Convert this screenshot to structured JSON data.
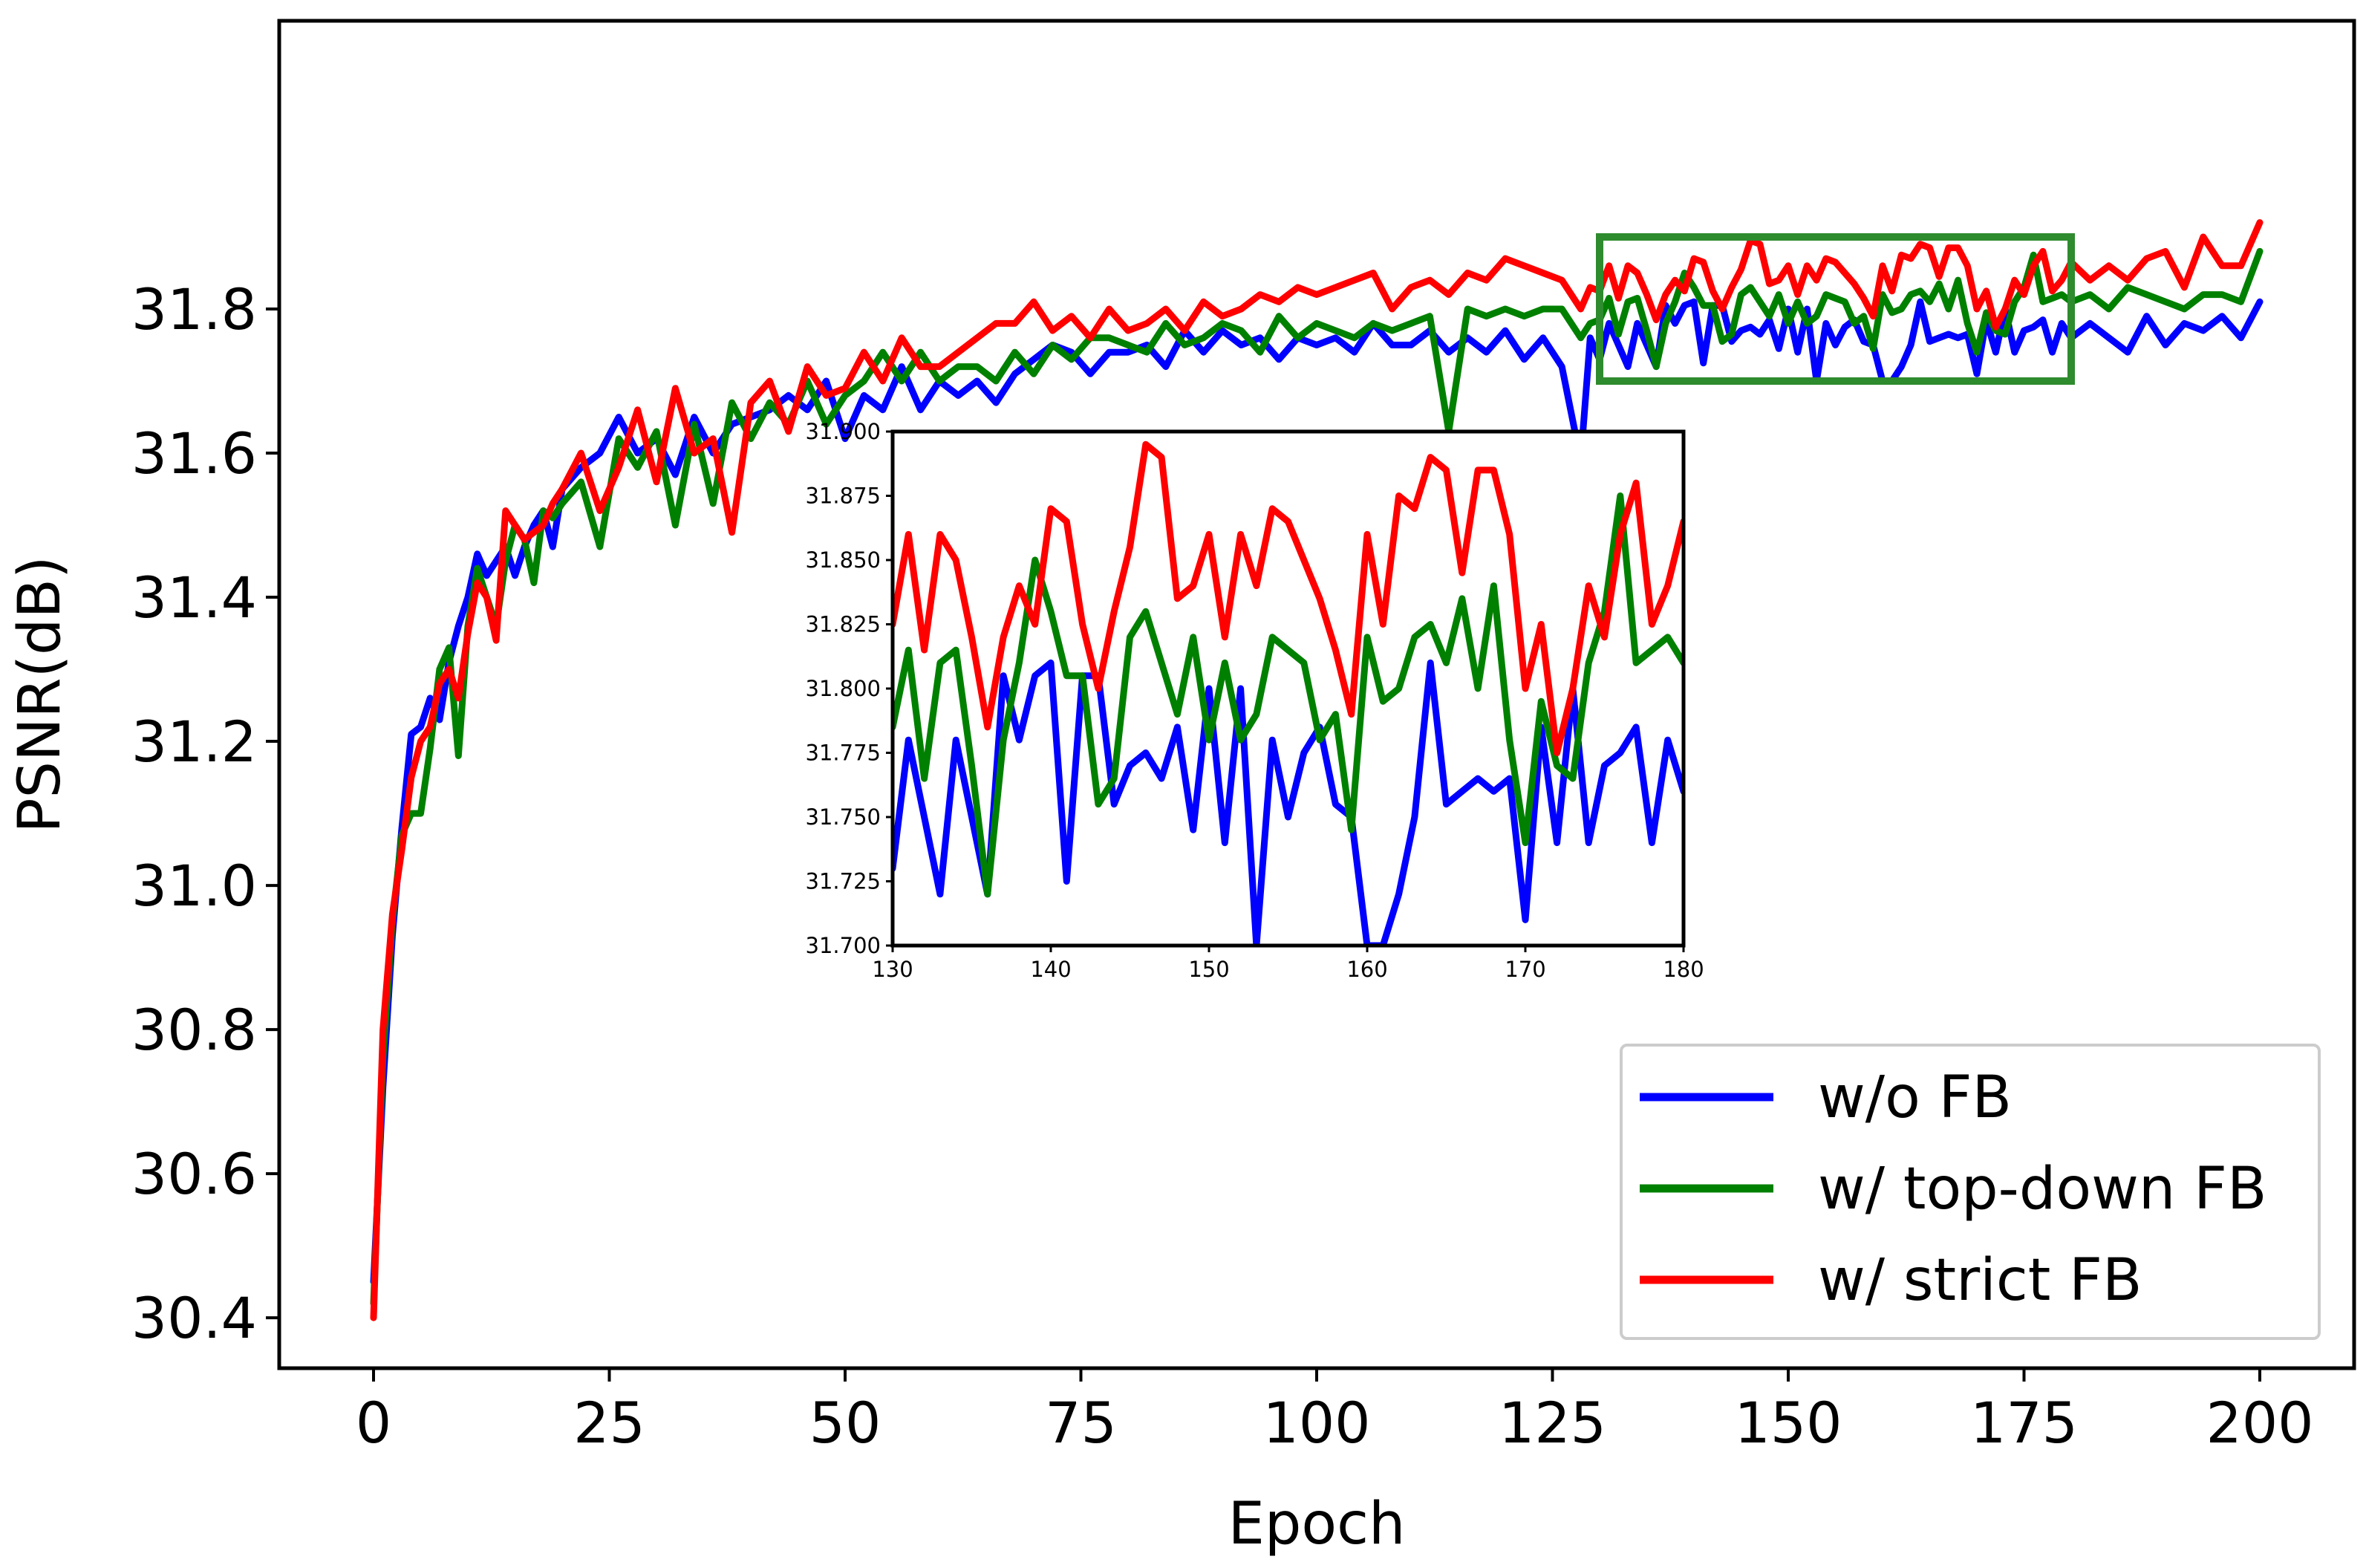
{
  "chart_data": {
    "type": "line",
    "title": "",
    "xlabel": "Epoch",
    "ylabel": "PSNR(dB)",
    "xlim": [
      -10,
      210
    ],
    "ylim": [
      30.33,
      32.2
    ],
    "xticks": [
      0,
      25,
      50,
      75,
      100,
      125,
      150,
      175,
      200
    ],
    "xtick_labels": [
      "0",
      "25",
      "50",
      "75",
      "100",
      "125",
      "150",
      "175",
      "200"
    ],
    "yticks": [
      30.4,
      30.6,
      30.8,
      31.0,
      31.2,
      31.4,
      31.6,
      31.8
    ],
    "ytick_labels": [
      "30.4",
      "30.6",
      "30.8",
      "31.0",
      "31.2",
      "31.4",
      "31.6",
      "31.8"
    ],
    "grid": false,
    "legend_position": "bottom-right",
    "series": [
      {
        "name": "w/o FB",
        "color": "#0000ff",
        "x": [
          0,
          1,
          2,
          3,
          4,
          5,
          6,
          7,
          8,
          9,
          10,
          11,
          12,
          13,
          14,
          15,
          16,
          17,
          18,
          19,
          20,
          22,
          24,
          26,
          28,
          30,
          32,
          34,
          36,
          38,
          40,
          42,
          44,
          46,
          48,
          50,
          52,
          54,
          56,
          58,
          60,
          62,
          64,
          66,
          68,
          70,
          72,
          74,
          76,
          78,
          80,
          82,
          84,
          86,
          88,
          90,
          92,
          94,
          96,
          98,
          100,
          102,
          104,
          106,
          108,
          110,
          112,
          114,
          116,
          118,
          120,
          122,
          124,
          126,
          128,
          129,
          130,
          131,
          132,
          133,
          134,
          135,
          136,
          137,
          138,
          139,
          140,
          141,
          142,
          143,
          144,
          145,
          146,
          147,
          148,
          149,
          150,
          151,
          152,
          153,
          154,
          155,
          156,
          157,
          158,
          159,
          160,
          161,
          162,
          163,
          164,
          165,
          166,
          167,
          168,
          169,
          170,
          171,
          172,
          173,
          174,
          175,
          176,
          177,
          178,
          179,
          180,
          182,
          184,
          186,
          188,
          190,
          192,
          194,
          196,
          198,
          200
        ],
        "values": [
          30.45,
          30.72,
          30.93,
          31.08,
          31.21,
          31.22,
          31.26,
          31.23,
          31.31,
          31.36,
          31.4,
          31.46,
          31.43,
          31.45,
          31.47,
          31.43,
          31.47,
          31.5,
          31.52,
          31.47,
          31.55,
          31.58,
          31.6,
          31.65,
          31.6,
          31.62,
          31.57,
          31.65,
          31.6,
          31.64,
          31.65,
          31.66,
          31.68,
          31.66,
          31.7,
          31.62,
          31.68,
          31.66,
          31.72,
          31.66,
          31.7,
          31.68,
          31.7,
          31.67,
          31.71,
          31.73,
          31.75,
          31.74,
          31.71,
          31.74,
          31.74,
          31.75,
          31.72,
          31.77,
          31.74,
          31.77,
          31.75,
          31.76,
          31.73,
          31.76,
          31.75,
          31.76,
          31.74,
          31.78,
          31.75,
          31.75,
          31.77,
          31.74,
          31.76,
          31.74,
          31.77,
          31.73,
          31.76,
          31.72,
          31.59,
          31.76,
          31.73,
          31.78,
          31.75,
          31.72,
          31.78,
          31.75,
          31.72,
          31.805,
          31.78,
          31.805,
          31.81,
          31.725,
          31.805,
          31.805,
          31.755,
          31.77,
          31.775,
          31.765,
          31.785,
          31.745,
          31.8,
          31.74,
          31.8,
          31.7,
          31.78,
          31.75,
          31.775,
          31.785,
          31.755,
          31.75,
          31.7,
          31.7,
          31.72,
          31.75,
          31.81,
          31.755,
          31.76,
          31.765,
          31.76,
          31.765,
          31.71,
          31.785,
          31.74,
          31.8,
          31.74,
          31.77,
          31.775,
          31.785,
          31.74,
          31.78,
          31.76,
          31.78,
          31.76,
          31.74,
          31.79,
          31.75,
          31.78,
          31.77,
          31.79,
          31.76,
          31.81
        ]
      },
      {
        "name": "w/ top-down FB",
        "color": "#008000",
        "x": [
          0,
          1,
          2,
          3,
          4,
          5,
          6,
          7,
          8,
          9,
          10,
          11,
          12,
          13,
          14,
          15,
          16,
          17,
          18,
          19,
          20,
          22,
          24,
          26,
          28,
          30,
          32,
          34,
          36,
          38,
          40,
          42,
          44,
          46,
          48,
          50,
          52,
          54,
          56,
          58,
          60,
          62,
          64,
          66,
          68,
          70,
          72,
          74,
          76,
          78,
          80,
          82,
          84,
          86,
          88,
          90,
          92,
          94,
          96,
          98,
          100,
          102,
          104,
          106,
          108,
          110,
          112,
          114,
          116,
          118,
          120,
          122,
          124,
          126,
          128,
          129,
          130,
          131,
          132,
          133,
          134,
          135,
          136,
          137,
          138,
          139,
          140,
          141,
          142,
          143,
          144,
          145,
          146,
          147,
          148,
          149,
          150,
          151,
          152,
          153,
          154,
          155,
          156,
          157,
          158,
          159,
          160,
          161,
          162,
          163,
          164,
          165,
          166,
          167,
          168,
          169,
          170,
          171,
          172,
          173,
          174,
          175,
          176,
          177,
          178,
          179,
          180,
          182,
          184,
          186,
          188,
          190,
          192,
          194,
          196,
          198,
          200
        ],
        "values": [
          30.42,
          30.76,
          30.95,
          31.07,
          31.1,
          31.1,
          31.19,
          31.3,
          31.33,
          31.18,
          31.36,
          31.44,
          31.4,
          31.36,
          31.45,
          31.5,
          31.48,
          31.42,
          31.52,
          31.51,
          31.53,
          31.56,
          31.47,
          31.62,
          31.58,
          31.63,
          31.5,
          31.64,
          31.53,
          31.67,
          31.62,
          31.67,
          31.64,
          31.7,
          31.64,
          31.68,
          31.7,
          31.74,
          31.7,
          31.74,
          31.7,
          31.72,
          31.72,
          31.7,
          31.74,
          31.71,
          31.75,
          31.73,
          31.76,
          31.76,
          31.75,
          31.74,
          31.78,
          31.75,
          31.76,
          31.78,
          31.77,
          31.74,
          31.79,
          31.76,
          31.78,
          31.77,
          31.76,
          31.78,
          31.77,
          31.78,
          31.79,
          31.63,
          31.8,
          31.79,
          31.8,
          31.79,
          31.8,
          31.8,
          31.76,
          31.78,
          31.785,
          31.815,
          31.765,
          31.81,
          31.815,
          31.77,
          31.72,
          31.78,
          31.81,
          31.85,
          31.83,
          31.805,
          31.805,
          31.755,
          31.765,
          31.82,
          31.83,
          31.81,
          31.79,
          31.82,
          31.78,
          31.81,
          31.78,
          31.79,
          31.82,
          31.815,
          31.81,
          31.78,
          31.79,
          31.745,
          31.82,
          31.795,
          31.8,
          31.82,
          31.825,
          31.81,
          31.835,
          31.8,
          31.84,
          31.78,
          31.74,
          31.795,
          31.77,
          31.765,
          31.81,
          31.83,
          31.875,
          31.81,
          31.815,
          31.82,
          31.81,
          31.82,
          31.8,
          31.83,
          31.82,
          31.81,
          31.8,
          31.82,
          31.82,
          31.81,
          31.88
        ]
      },
      {
        "name": "w/ strict FB",
        "color": "#ff0000",
        "x": [
          0,
          1,
          2,
          3,
          4,
          5,
          6,
          7,
          8,
          9,
          10,
          11,
          12,
          13,
          14,
          15,
          16,
          17,
          18,
          19,
          20,
          22,
          24,
          26,
          28,
          30,
          32,
          34,
          36,
          38,
          40,
          42,
          44,
          46,
          48,
          50,
          52,
          54,
          56,
          58,
          60,
          62,
          64,
          66,
          68,
          70,
          72,
          74,
          76,
          78,
          80,
          82,
          84,
          86,
          88,
          90,
          92,
          94,
          96,
          98,
          100,
          102,
          104,
          106,
          108,
          110,
          112,
          114,
          116,
          118,
          120,
          122,
          124,
          126,
          128,
          129,
          130,
          131,
          132,
          133,
          134,
          135,
          136,
          137,
          138,
          139,
          140,
          141,
          142,
          143,
          144,
          145,
          146,
          147,
          148,
          149,
          150,
          151,
          152,
          153,
          154,
          155,
          156,
          157,
          158,
          159,
          160,
          161,
          162,
          163,
          164,
          165,
          166,
          167,
          168,
          169,
          170,
          171,
          172,
          173,
          174,
          175,
          176,
          177,
          178,
          179,
          180,
          182,
          184,
          186,
          188,
          190,
          192,
          194,
          196,
          198,
          200
        ],
        "values": [
          30.4,
          30.8,
          30.96,
          31.05,
          31.15,
          31.2,
          31.22,
          31.28,
          31.3,
          31.26,
          31.35,
          31.42,
          31.4,
          31.34,
          31.52,
          31.5,
          31.48,
          31.49,
          31.5,
          31.53,
          31.55,
          31.6,
          31.52,
          31.58,
          31.66,
          31.56,
          31.69,
          31.6,
          31.62,
          31.49,
          31.67,
          31.7,
          31.63,
          31.72,
          31.68,
          31.69,
          31.74,
          31.7,
          31.76,
          31.72,
          31.72,
          31.74,
          31.76,
          31.78,
          31.78,
          31.81,
          31.77,
          31.79,
          31.76,
          31.8,
          31.77,
          31.78,
          31.8,
          31.77,
          31.81,
          31.79,
          31.8,
          31.82,
          31.81,
          31.83,
          31.82,
          31.83,
          31.84,
          31.85,
          31.8,
          31.83,
          31.84,
          31.82,
          31.85,
          31.84,
          31.87,
          31.86,
          31.85,
          31.84,
          31.8,
          31.83,
          31.825,
          31.86,
          31.815,
          31.86,
          31.85,
          31.82,
          31.785,
          31.82,
          31.84,
          31.825,
          31.87,
          31.865,
          31.825,
          31.8,
          31.83,
          31.855,
          31.895,
          31.89,
          31.835,
          31.84,
          31.86,
          31.82,
          31.86,
          31.84,
          31.87,
          31.865,
          31.85,
          31.835,
          31.815,
          31.79,
          31.86,
          31.825,
          31.875,
          31.87,
          31.89,
          31.885,
          31.845,
          31.885,
          31.885,
          31.86,
          31.8,
          31.825,
          31.775,
          31.8,
          31.84,
          31.82,
          31.86,
          31.88,
          31.825,
          31.84,
          31.865,
          31.84,
          31.86,
          31.84,
          31.87,
          31.88,
          31.83,
          31.9,
          31.86,
          31.86,
          31.92
        ]
      }
    ],
    "inset": {
      "xlim": [
        130,
        180
      ],
      "ylim": [
        31.7,
        31.9
      ],
      "xticks": [
        130,
        140,
        150,
        160,
        170,
        180
      ],
      "xtick_labels": [
        "130",
        "140",
        "150",
        "160",
        "170",
        "180"
      ],
      "yticks": [
        31.7,
        31.725,
        31.75,
        31.775,
        31.8,
        31.825,
        31.85,
        31.875,
        31.9
      ],
      "ytick_labels": [
        "31.700",
        "31.725",
        "31.750",
        "31.775",
        "31.800",
        "31.825",
        "31.850",
        "31.875",
        "31.900"
      ],
      "highlight_color": "#2e8b2e"
    }
  }
}
